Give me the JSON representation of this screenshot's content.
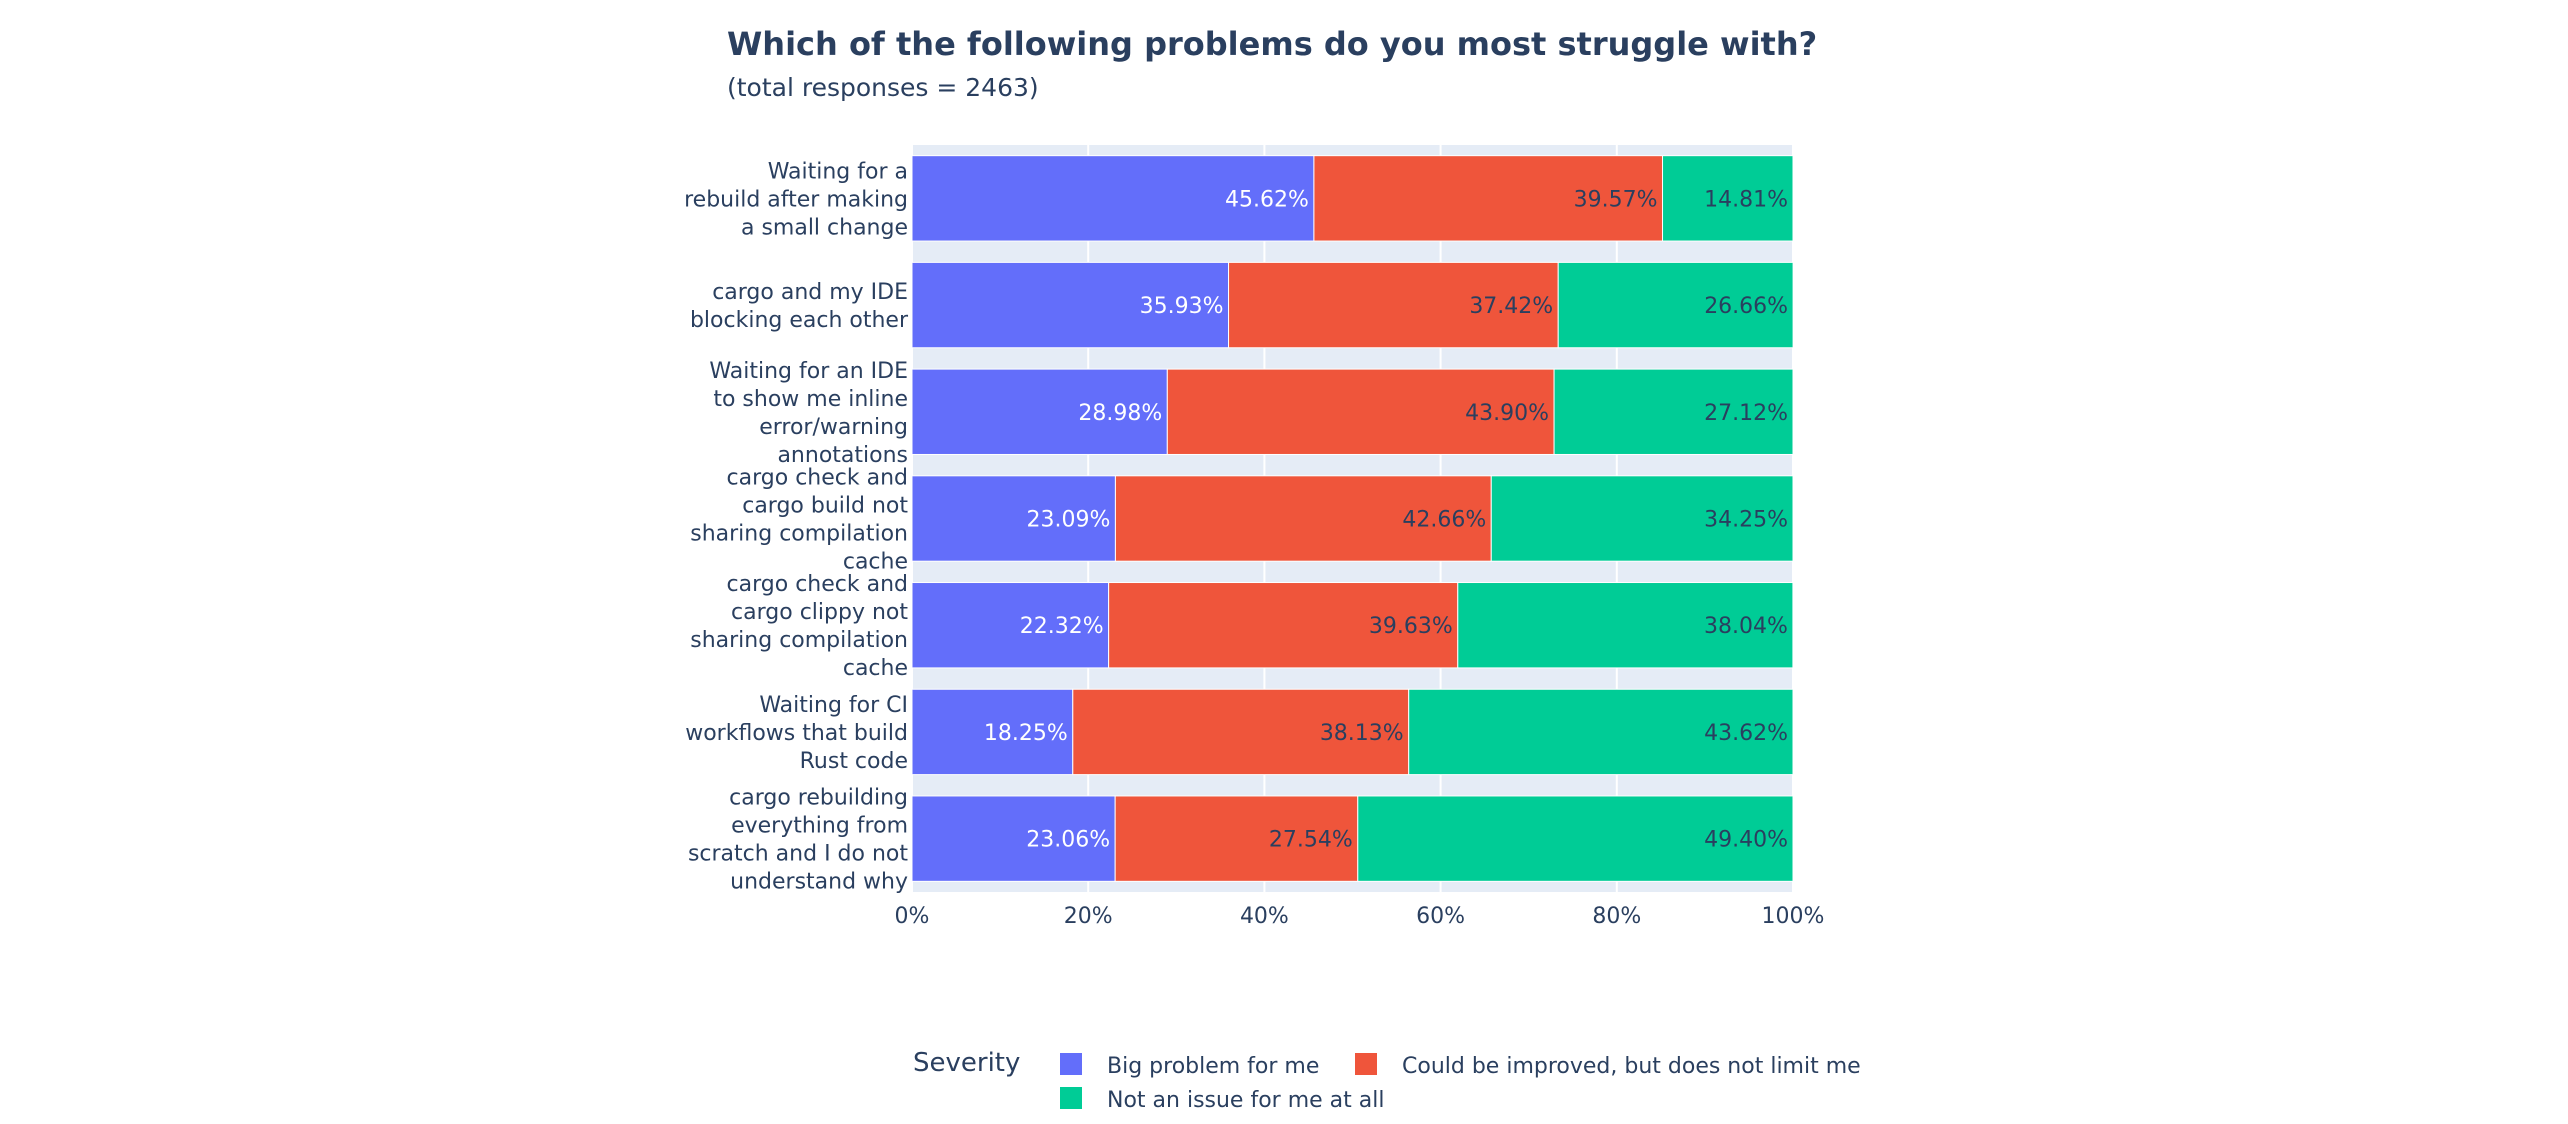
{
  "chart_data": {
    "type": "bar",
    "orientation": "horizontal",
    "barmode": "stack",
    "title": "Which of the following problems do you most struggle with?",
    "subtitle": "(total responses = 2463)",
    "categories": [
      [
        "Waiting for a",
        "rebuild after making",
        "a small change"
      ],
      [
        "cargo and my IDE",
        "blocking each other"
      ],
      [
        "Waiting for an IDE",
        "to show me inline",
        "error/warning",
        "annotations"
      ],
      [
        "cargo check and",
        "cargo build not",
        "sharing compilation",
        "cache"
      ],
      [
        "cargo check and",
        "cargo clippy not",
        "sharing compilation",
        "cache"
      ],
      [
        "Waiting for CI",
        "workflows that build",
        "Rust code"
      ],
      [
        "cargo rebuilding",
        "everything from",
        "scratch and I do not",
        "understand why"
      ]
    ],
    "series": [
      {
        "name": "Big problem for me",
        "color": "#636efa",
        "label_color": "#ffffff",
        "values": [
          45.62,
          35.93,
          28.98,
          23.09,
          22.32,
          18.25,
          23.06
        ],
        "labels": [
          "45.62%",
          "35.93%",
          "28.98%",
          "23.09%",
          "22.32%",
          "18.25%",
          "23.06%"
        ]
      },
      {
        "name": "Could be improved, but does not limit me",
        "color": "#ef553b",
        "label_color": "#2a3f5f",
        "values": [
          39.57,
          37.42,
          43.9,
          42.66,
          39.63,
          38.13,
          27.54
        ],
        "labels": [
          "39.57%",
          "37.42%",
          "43.90%",
          "42.66%",
          "39.63%",
          "38.13%",
          "27.54%"
        ]
      },
      {
        "name": "Not an issue for me at all",
        "color": "#00cc96",
        "label_color": "#2a3f5f",
        "values": [
          14.81,
          26.66,
          27.12,
          34.25,
          38.04,
          43.62,
          49.4
        ],
        "labels": [
          "14.81%",
          "26.66%",
          "27.12%",
          "34.25%",
          "38.04%",
          "43.62%",
          "49.40%"
        ]
      }
    ],
    "xlim": [
      0,
      100
    ],
    "xticks": [
      0,
      20,
      40,
      60,
      80,
      100
    ],
    "xtick_labels": [
      "0%",
      "20%",
      "40%",
      "60%",
      "80%",
      "100%"
    ],
    "xlabel": "",
    "ylabel": "",
    "grid": true,
    "plot_bg": "#e5ecf6",
    "legend": {
      "title": "Severity",
      "position": "bottom"
    }
  }
}
